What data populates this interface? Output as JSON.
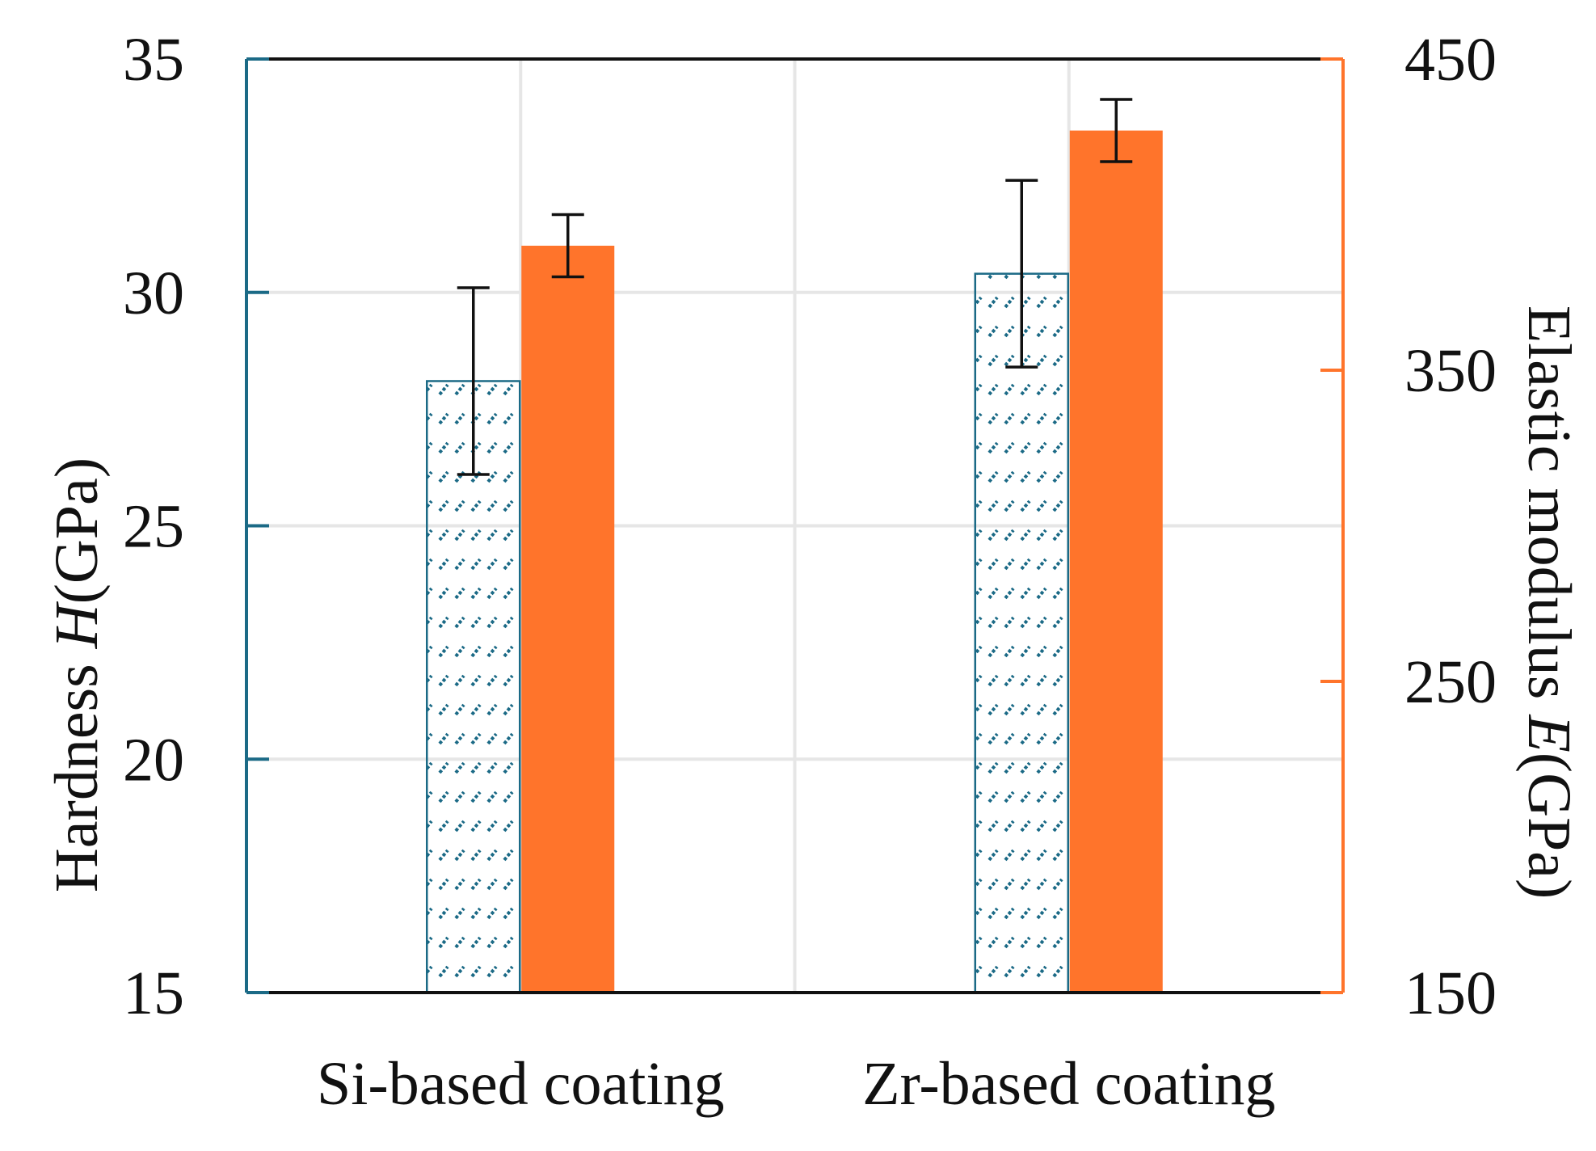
{
  "chart_data": {
    "type": "bar",
    "categories": [
      "Si-based coating",
      "Zr-based coating"
    ],
    "series": [
      {
        "name": "Hardness",
        "axis": "left",
        "values": [
          28.1,
          30.4
        ],
        "errors": [
          2.0,
          2.0
        ],
        "fill": "hatched",
        "color": "#1b6a86"
      },
      {
        "name": "Elastic modulus",
        "axis": "right",
        "values": [
          390,
          427
        ],
        "errors": [
          10,
          10
        ],
        "fill": "solid",
        "color": "#ff742b"
      }
    ],
    "left_axis": {
      "title_prefix": "Hardness ",
      "title_var": "H",
      "title_suffix": "(GPa)",
      "ylim": [
        15,
        35
      ],
      "ticks": [
        "15",
        "20",
        "25",
        "30",
        "35"
      ],
      "color": "#1b6a86"
    },
    "right_axis": {
      "title_prefix": "Elastic modulus ",
      "title_var": "E",
      "title_suffix": "(GPa)",
      "ylim": [
        150,
        450
      ],
      "ticks": [
        "150",
        "250",
        "350",
        "450"
      ],
      "color": "#ff742b"
    },
    "grid": true
  }
}
